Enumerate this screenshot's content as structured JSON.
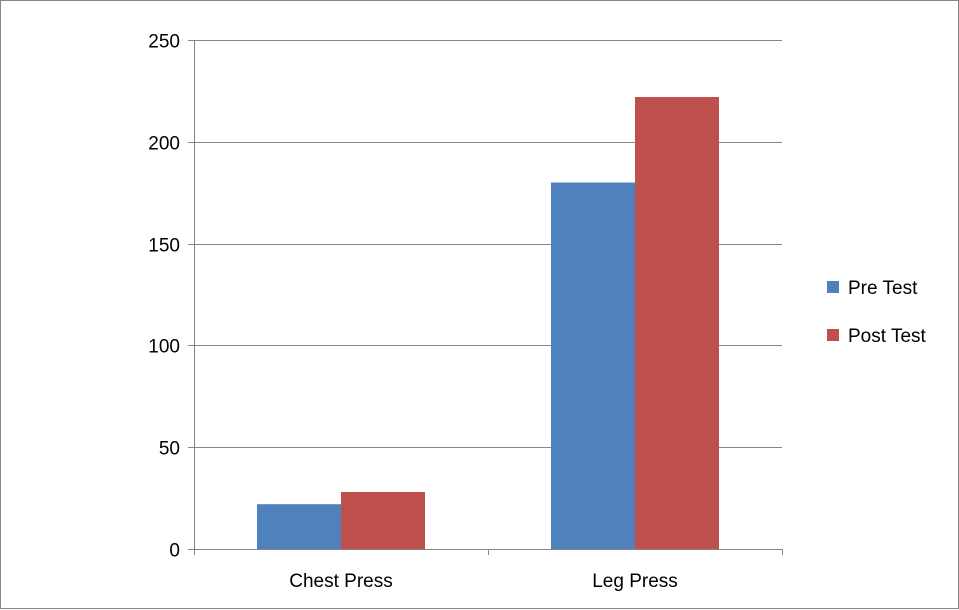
{
  "chart_data": {
    "type": "bar",
    "categories": [
      "Chest Press",
      "Leg Press"
    ],
    "series": [
      {
        "name": "Pre Test",
        "values": [
          22,
          180
        ],
        "color": "#4F81BD"
      },
      {
        "name": "Post Test",
        "values": [
          28,
          222
        ],
        "color": "#C0504D"
      }
    ],
    "ylim": [
      0,
      250
    ],
    "yticks": [
      0,
      50,
      100,
      150,
      200,
      250
    ],
    "grid": true,
    "legend_position": "right"
  }
}
